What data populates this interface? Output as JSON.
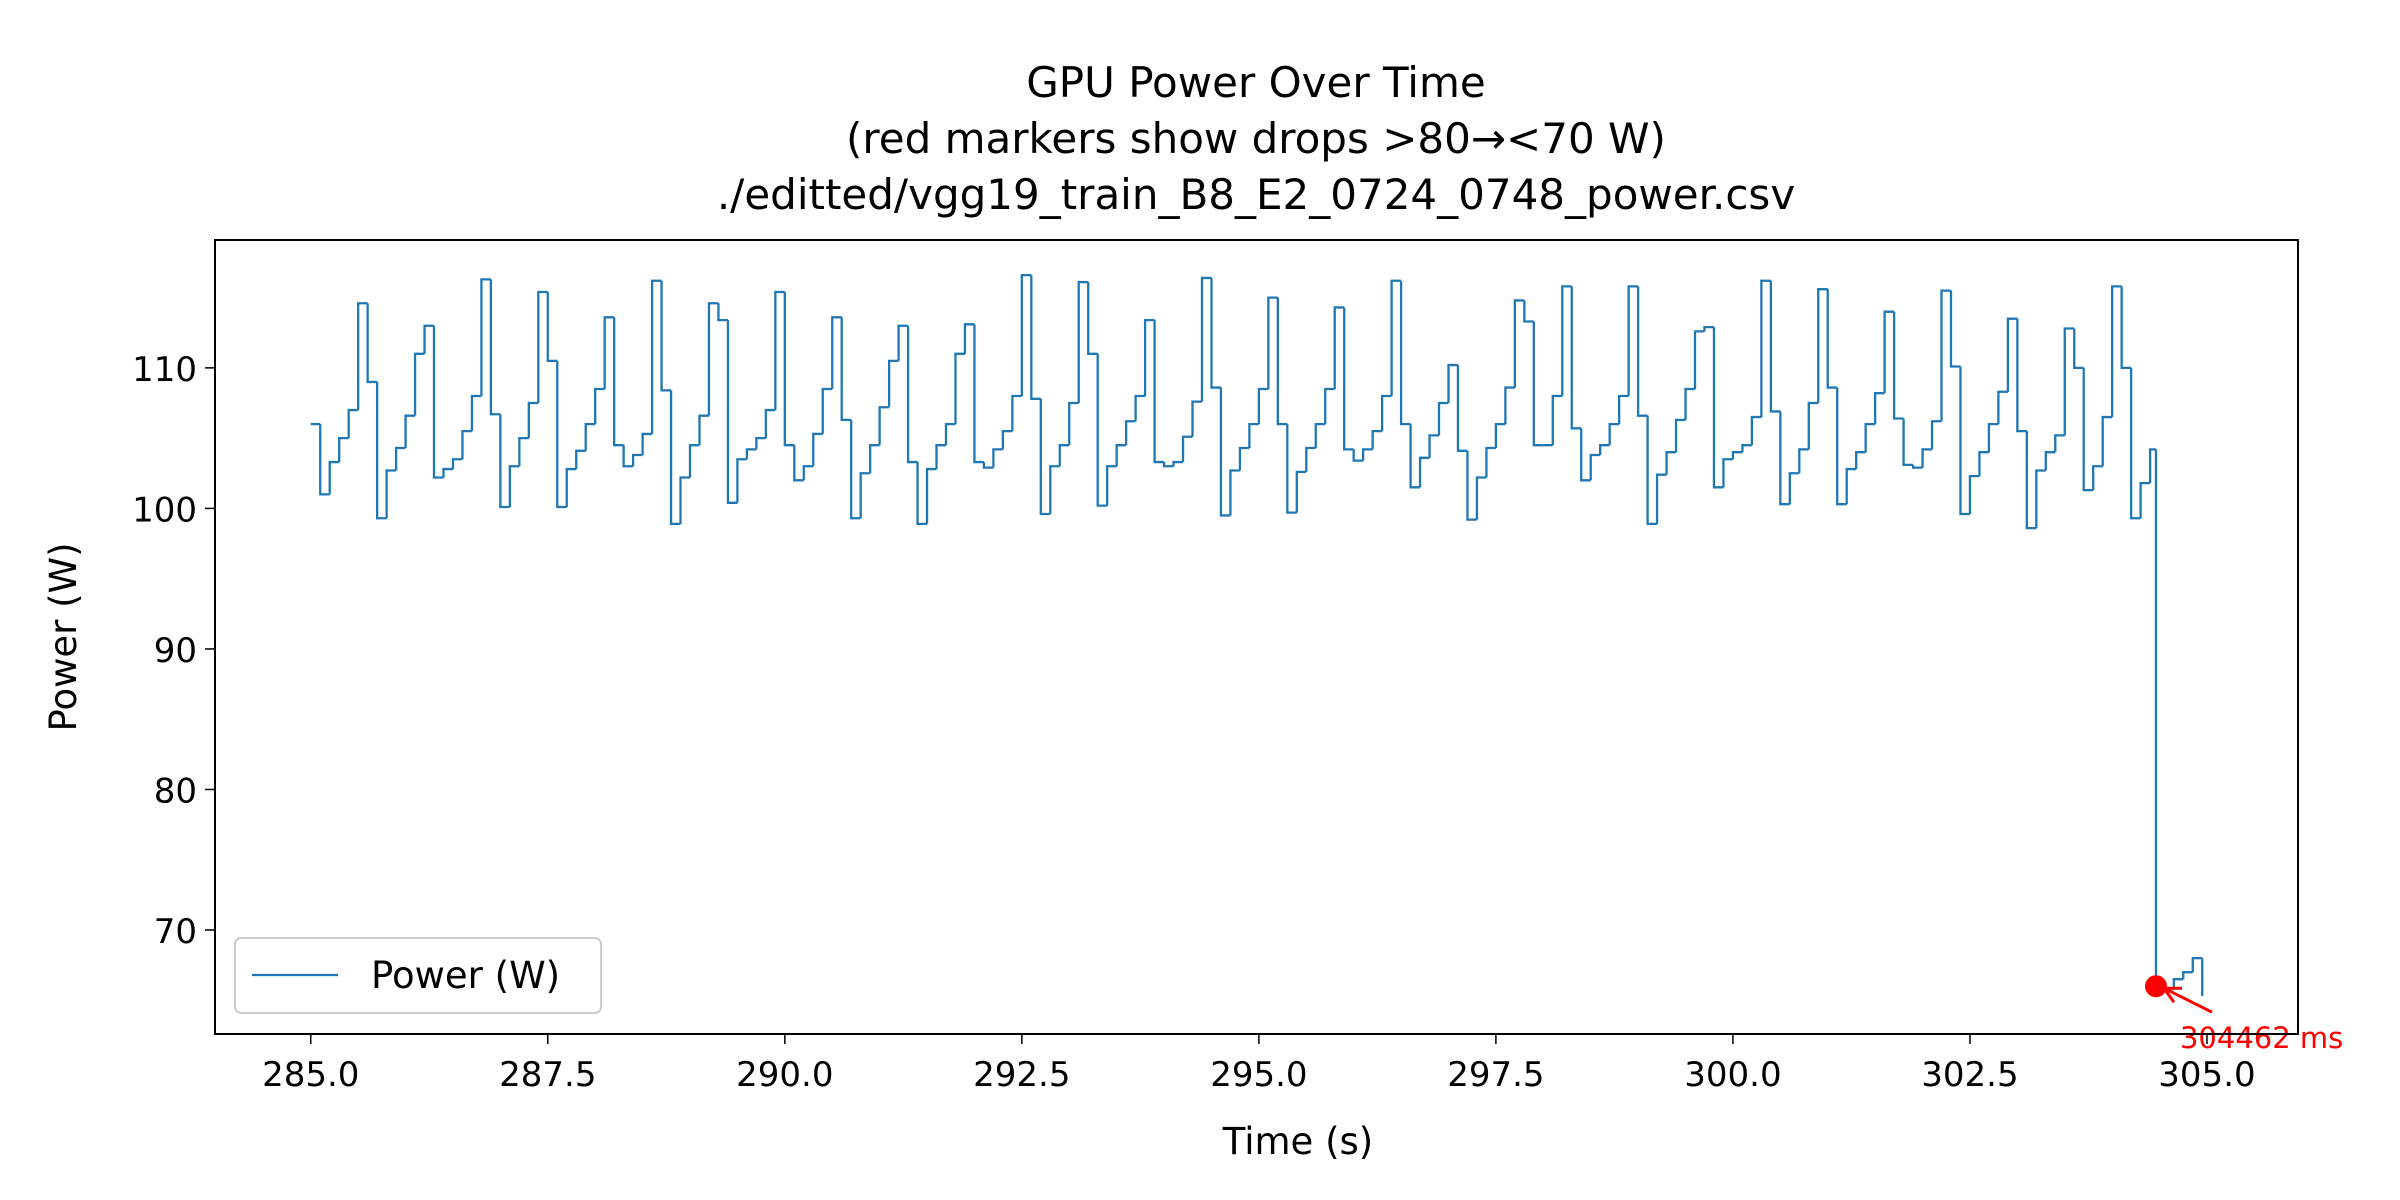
{
  "chart_data": {
    "type": "line",
    "drawstyle": "steps-post",
    "title": "GPU Power Over Time\n(red markers show drops >80→<70 W)\n./editted/vgg19_train_B8_E2_0724_0748_power.csv",
    "xlabel": "Time (s)",
    "ylabel": "Power (W)",
    "xlim": [
      283.99,
      305.96
    ],
    "ylim": [
      62.6,
      119.1
    ],
    "xticks": [
      {
        "value": 285,
        "label": "285.0"
      },
      {
        "value": 287.5,
        "label": "287.5"
      },
      {
        "value": 290,
        "label": "290.0"
      },
      {
        "value": 292.5,
        "label": "292.5"
      },
      {
        "value": 295,
        "label": "295.0"
      },
      {
        "value": 297.5,
        "label": "297.5"
      },
      {
        "value": 300,
        "label": "300.0"
      },
      {
        "value": 302.5,
        "label": "302.5"
      },
      {
        "value": 305,
        "label": "305.0"
      }
    ],
    "yticks": [
      70,
      80,
      90,
      100,
      110
    ],
    "legend": "lower left",
    "x": [
      285,
      285.1,
      285.2,
      285.3,
      285.4,
      285.5,
      285.6,
      285.7,
      285.8,
      285.9,
      286,
      286.1,
      286.2,
      286.3,
      286.4,
      286.5,
      286.6,
      286.7,
      286.8,
      286.9,
      287,
      287.1,
      287.2,
      287.3,
      287.4,
      287.5,
      287.6,
      287.7,
      287.8,
      287.9,
      288,
      288.1,
      288.2,
      288.3,
      288.4,
      288.5,
      288.6,
      288.7,
      288.8,
      288.9,
      289,
      289.1,
      289.2,
      289.3,
      289.4,
      289.5,
      289.6,
      289.7,
      289.8,
      289.9,
      290,
      290.1,
      290.2,
      290.3,
      290.4,
      290.5,
      290.6,
      290.7,
      290.8,
      290.9,
      291,
      291.1,
      291.2,
      291.3,
      291.4,
      291.5,
      291.6,
      291.7,
      291.8,
      291.9,
      292,
      292.1,
      292.2,
      292.3,
      292.4,
      292.5,
      292.6,
      292.7,
      292.8,
      292.9,
      293,
      293.1,
      293.2,
      293.3,
      293.4,
      293.5,
      293.6,
      293.7,
      293.8,
      293.9,
      294,
      294.1,
      294.2,
      294.3,
      294.4,
      294.5,
      294.6,
      294.7,
      294.8,
      294.9,
      295,
      295.1,
      295.2,
      295.3,
      295.4,
      295.5,
      295.6,
      295.7,
      295.8,
      295.9,
      296,
      296.1,
      296.2,
      296.3,
      296.4,
      296.5,
      296.6,
      296.7,
      296.8,
      296.9,
      297,
      297.1,
      297.2,
      297.3,
      297.4,
      297.5,
      297.6,
      297.7,
      297.8,
      297.9,
      298,
      298.1,
      298.2,
      298.3,
      298.4,
      298.5,
      298.6,
      298.7,
      298.8,
      298.9,
      299,
      299.1,
      299.2,
      299.3,
      299.4,
      299.5,
      299.6,
      299.7,
      299.8,
      299.9,
      300,
      300.1,
      300.2,
      300.3,
      300.4,
      300.5,
      300.6,
      300.7,
      300.8,
      300.9,
      301,
      301.1,
      301.2,
      301.3,
      301.4,
      301.5,
      301.6,
      301.7,
      301.8,
      301.9,
      302,
      302.1,
      302.2,
      302.3,
      302.4,
      302.5,
      302.6,
      302.7,
      302.8,
      302.9,
      303,
      303.1,
      303.2,
      303.3,
      303.4,
      303.5,
      303.6,
      303.7,
      303.8,
      303.9,
      304,
      304.1,
      304.2,
      304.3,
      304.4,
      304.462,
      304.55,
      304.65,
      304.75,
      304.85,
      304.95
    ],
    "series": [
      {
        "name": "Power (W)",
        "color": "#1f77b4",
        "values": [
          106,
          101,
          103.3,
          105,
          107,
          114.6,
          109,
          99.3,
          102.7,
          104.3,
          106.6,
          111,
          113,
          102.2,
          102.8,
          103.5,
          105.5,
          108,
          116.3,
          106.7,
          100.1,
          103,
          105,
          107.5,
          115.4,
          110.5,
          100.1,
          102.8,
          104.1,
          106,
          108.5,
          113.6,
          104.5,
          103,
          103.8,
          105.3,
          116.2,
          108.4,
          98.9,
          102.2,
          104.5,
          106.6,
          114.6,
          113.4,
          100.4,
          103.5,
          104.2,
          105,
          107,
          115.4,
          104.5,
          102,
          103,
          105.3,
          108.5,
          113.6,
          106.3,
          99.3,
          102.5,
          104.5,
          107.2,
          110.5,
          113,
          103.3,
          98.9,
          102.8,
          104.5,
          106,
          111,
          113.1,
          103.3,
          102.9,
          104.2,
          105.5,
          108,
          116.6,
          107.8,
          99.6,
          103,
          104.5,
          107.5,
          116.1,
          111,
          100.2,
          103,
          104.5,
          106.2,
          108,
          113.4,
          103.3,
          103,
          103.3,
          105.1,
          107.6,
          116.4,
          108.6,
          99.5,
          102.7,
          104.3,
          106,
          108.5,
          115,
          106,
          99.7,
          102.6,
          104.3,
          106,
          108.5,
          114.3,
          104.2,
          103.4,
          104.2,
          105.5,
          108,
          116.2,
          106,
          101.5,
          103.6,
          105.2,
          107.5,
          110.2,
          104.1,
          99.2,
          102.2,
          104.3,
          106,
          108.6,
          114.8,
          113.3,
          104.5,
          104.5,
          108,
          115.8,
          105.7,
          102,
          103.8,
          104.5,
          106,
          108,
          115.8,
          106.6,
          98.9,
          102.4,
          104,
          106.3,
          108.5,
          112.6,
          112.9,
          101.5,
          103.5,
          104,
          104.5,
          106.5,
          116.2,
          106.9,
          100.3,
          102.5,
          104.2,
          107.5,
          115.6,
          108.6,
          100.3,
          102.8,
          104,
          106,
          108.2,
          114,
          106.4,
          103.1,
          102.9,
          104.2,
          106.2,
          115.5,
          110.1,
          99.6,
          102.3,
          104,
          106,
          108.3,
          113.5,
          105.5,
          98.6,
          102.7,
          104,
          105.2,
          112.8,
          110,
          101.3,
          103,
          106.5,
          115.8,
          110,
          99.3,
          101.8,
          104.2,
          66,
          65.8,
          66.5,
          67,
          68,
          65.3
        ]
      }
    ],
    "markers": {
      "x": [
        304.462
      ],
      "y": [
        66
      ],
      "color": "#ff0000",
      "labels": [
        "304462 ms"
      ]
    }
  }
}
